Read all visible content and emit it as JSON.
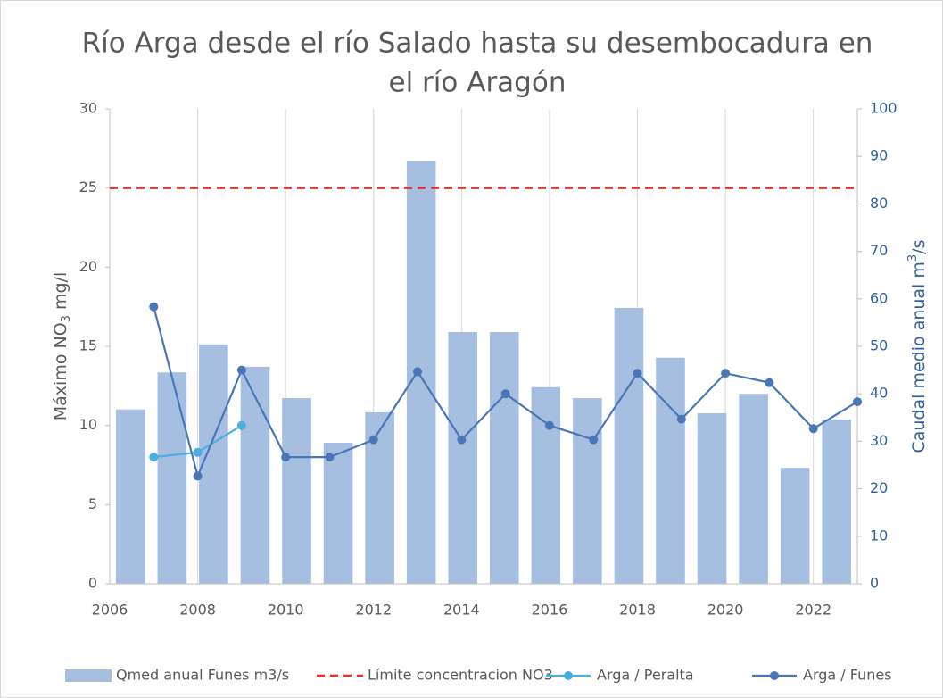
{
  "chart_data": {
    "type": "combo",
    "title": [
      "Río Arga desde el río Salado hasta su desembocadura en",
      "el río Aragón"
    ],
    "ylabel": {
      "main": "Máximo NO",
      "sub": "3",
      "after": " mg/l"
    },
    "y2label": {
      "main": "Caudal medio anual m",
      "sup": "3",
      "after": "/s"
    },
    "xlim": [
      2006,
      2023
    ],
    "xticks": [
      2006,
      2008,
      2010,
      2012,
      2014,
      2016,
      2018,
      2020,
      2022
    ],
    "ylim": [
      0,
      30
    ],
    "yticks": [
      0,
      5,
      10,
      15,
      20,
      25,
      30
    ],
    "y2lim": [
      0,
      100
    ],
    "y2ticks": [
      0,
      10,
      20,
      30,
      40,
      50,
      60,
      70,
      80,
      90,
      100
    ],
    "grid": "x",
    "legend": "bottom",
    "series": [
      {
        "name": "Qmed anual Funes m3/s",
        "kind": "bar",
        "axis": "y2",
        "color": "#a6bfe0",
        "values": [
          36.7,
          44.5,
          50.4,
          45.7,
          39.1,
          29.7,
          36.1,
          89.1,
          53.0,
          53.0,
          41.4,
          39.1,
          58.1,
          47.6,
          35.9,
          40.0,
          24.4,
          34.6
        ]
      },
      {
        "name": "Límite concentracion NO3",
        "kind": "hline",
        "color": "#e8312f",
        "value": 25
      },
      {
        "name": "Arga / Peralta",
        "kind": "line",
        "color": "#4aaee0",
        "x": [
          2007,
          2008,
          2009
        ],
        "values": [
          8.0,
          8.3,
          10.0
        ]
      },
      {
        "name": "Arga / Funes",
        "kind": "line",
        "color": "#4a76b8",
        "x": [
          2007,
          2008,
          2009,
          2010,
          2011,
          2012,
          2013,
          2014,
          2015,
          2016,
          2017,
          2018,
          2019,
          2020,
          2021,
          2022,
          2023
        ],
        "values": [
          17.5,
          6.8,
          13.5,
          8.0,
          8.0,
          9.1,
          13.4,
          9.1,
          12.0,
          10.0,
          9.1,
          13.3,
          10.4,
          13.3,
          12.7,
          9.8,
          11.5
        ]
      }
    ]
  }
}
